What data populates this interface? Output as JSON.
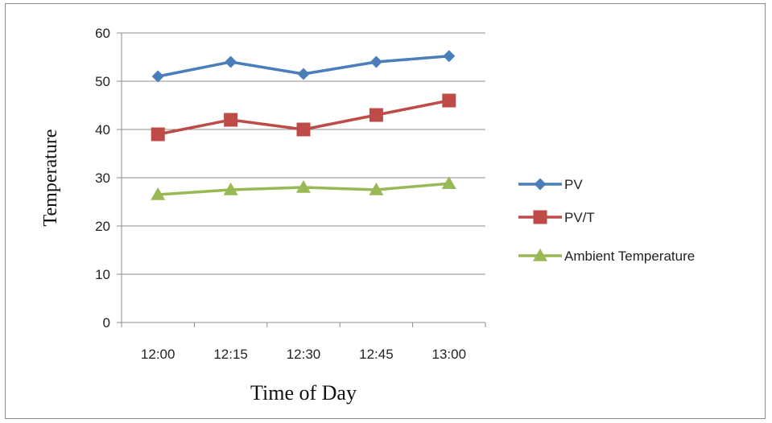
{
  "chart_data": {
    "type": "line",
    "categories": [
      "12:00",
      "12:15",
      "12:30",
      "12:45",
      "13:00"
    ],
    "series": [
      {
        "name": "PV",
        "values": [
          51,
          54,
          51.5,
          54,
          55.2
        ],
        "color": "#4a7ebb",
        "marker": "diamond"
      },
      {
        "name": "PV/T",
        "values": [
          39,
          42,
          40,
          43,
          46
        ],
        "color": "#be4b48",
        "marker": "square"
      },
      {
        "name": "Ambient Temperature",
        "values": [
          26.5,
          27.5,
          28,
          27.5,
          28.8
        ],
        "color": "#98b954",
        "marker": "triangle"
      }
    ],
    "title": "",
    "xlabel": "Time of Day",
    "ylabel": "Temperature",
    "ylim": [
      0,
      60
    ],
    "yticks": [
      0,
      10,
      20,
      30,
      40,
      50,
      60
    ],
    "grid": true,
    "legend_position": "right"
  }
}
